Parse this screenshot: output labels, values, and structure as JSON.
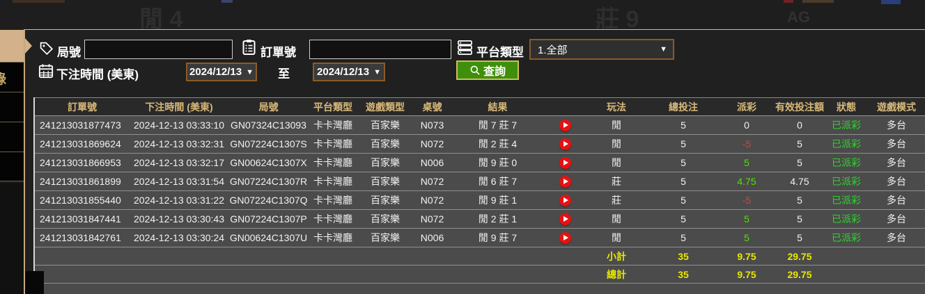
{
  "backdrop": {
    "faint_text_left": "閒 4",
    "faint_text_mid": "莊 9",
    "faint_logo": "AG"
  },
  "sidebar": {
    "partial_item_glyph": "錄"
  },
  "filters": {
    "round_label": "局號",
    "round_value": "",
    "order_label": "訂單號",
    "order_value": "",
    "platform_label": "平台類型",
    "platform_value": "1.全部",
    "bet_time_label": "下注時間 (美東)",
    "date_from": "2024/12/13",
    "to_label": "至",
    "date_to": "2024/12/13",
    "search_label": "查詢"
  },
  "colors": {
    "header_gold": "#d9b979",
    "status_green": "#2fd32f",
    "payout_positive_green": "#52e000",
    "payout_negative_red": "#d04545",
    "summary_yellow": "#e8e800",
    "search_button_green": "#3f8f0d",
    "select_border_brown": "#8a5c28",
    "sidebar_tan": "#d3b28b",
    "play_button_red": "#e51212"
  },
  "table": {
    "headers": [
      "訂單號",
      "下注時間 (美東)",
      "局號",
      "平台類型",
      "遊戲類型",
      "桌號",
      "結果",
      "",
      "玩法",
      "總投注",
      "派彩",
      "有效投注額",
      "狀態",
      "遊戲模式"
    ],
    "rows": [
      {
        "order_no": "241213031877473",
        "bet_time": "2024-12-13 03:33:10",
        "round_no": "GN07324C13093",
        "platform": "卡卡灣廳",
        "game_type": "百家樂",
        "table_no": "N073",
        "result": "閒 7 莊 7",
        "play": "閒",
        "total_bet": "5",
        "payout": "0",
        "payout_tone": "zero",
        "valid_bet": "0",
        "status": "已派彩",
        "mode": "多台"
      },
      {
        "order_no": "241213031869624",
        "bet_time": "2024-12-13 03:32:31",
        "round_no": "GN07224C1307S",
        "platform": "卡卡灣廳",
        "game_type": "百家樂",
        "table_no": "N072",
        "result": "閒 2 莊 4",
        "play": "閒",
        "total_bet": "5",
        "payout": "-5",
        "payout_tone": "neg",
        "valid_bet": "5",
        "status": "已派彩",
        "mode": "多台"
      },
      {
        "order_no": "241213031866953",
        "bet_time": "2024-12-13 03:32:17",
        "round_no": "GN00624C1307X",
        "platform": "卡卡灣廳",
        "game_type": "百家樂",
        "table_no": "N006",
        "result": "閒 9 莊 0",
        "play": "閒",
        "total_bet": "5",
        "payout": "5",
        "payout_tone": "pos",
        "valid_bet": "5",
        "status": "已派彩",
        "mode": "多台"
      },
      {
        "order_no": "241213031861899",
        "bet_time": "2024-12-13 03:31:54",
        "round_no": "GN07224C1307R",
        "platform": "卡卡灣廳",
        "game_type": "百家樂",
        "table_no": "N072",
        "result": "閒 6 莊 7",
        "play": "莊",
        "total_bet": "5",
        "payout": "4.75",
        "payout_tone": "pos",
        "valid_bet": "4.75",
        "status": "已派彩",
        "mode": "多台"
      },
      {
        "order_no": "241213031855440",
        "bet_time": "2024-12-13 03:31:22",
        "round_no": "GN07224C1307Q",
        "platform": "卡卡灣廳",
        "game_type": "百家樂",
        "table_no": "N072",
        "result": "閒 9 莊 1",
        "play": "莊",
        "total_bet": "5",
        "payout": "-5",
        "payout_tone": "neg",
        "valid_bet": "5",
        "status": "已派彩",
        "mode": "多台"
      },
      {
        "order_no": "241213031847441",
        "bet_time": "2024-12-13 03:30:43",
        "round_no": "GN07224C1307P",
        "platform": "卡卡灣廳",
        "game_type": "百家樂",
        "table_no": "N072",
        "result": "閒 2 莊 1",
        "play": "閒",
        "total_bet": "5",
        "payout": "5",
        "payout_tone": "pos",
        "valid_bet": "5",
        "status": "已派彩",
        "mode": "多台"
      },
      {
        "order_no": "241213031842761",
        "bet_time": "2024-12-13 03:30:24",
        "round_no": "GN00624C1307U",
        "platform": "卡卡灣廳",
        "game_type": "百家樂",
        "table_no": "N006",
        "result": "閒 9 莊 7",
        "play": "閒",
        "total_bet": "5",
        "payout": "5",
        "payout_tone": "pos",
        "valid_bet": "5",
        "status": "已派彩",
        "mode": "多台"
      }
    ],
    "subtotal": {
      "label": "小計",
      "total_bet": "35",
      "payout": "9.75",
      "valid_bet": "29.75"
    },
    "total": {
      "label": "總計",
      "total_bet": "35",
      "payout": "9.75",
      "valid_bet": "29.75"
    }
  }
}
